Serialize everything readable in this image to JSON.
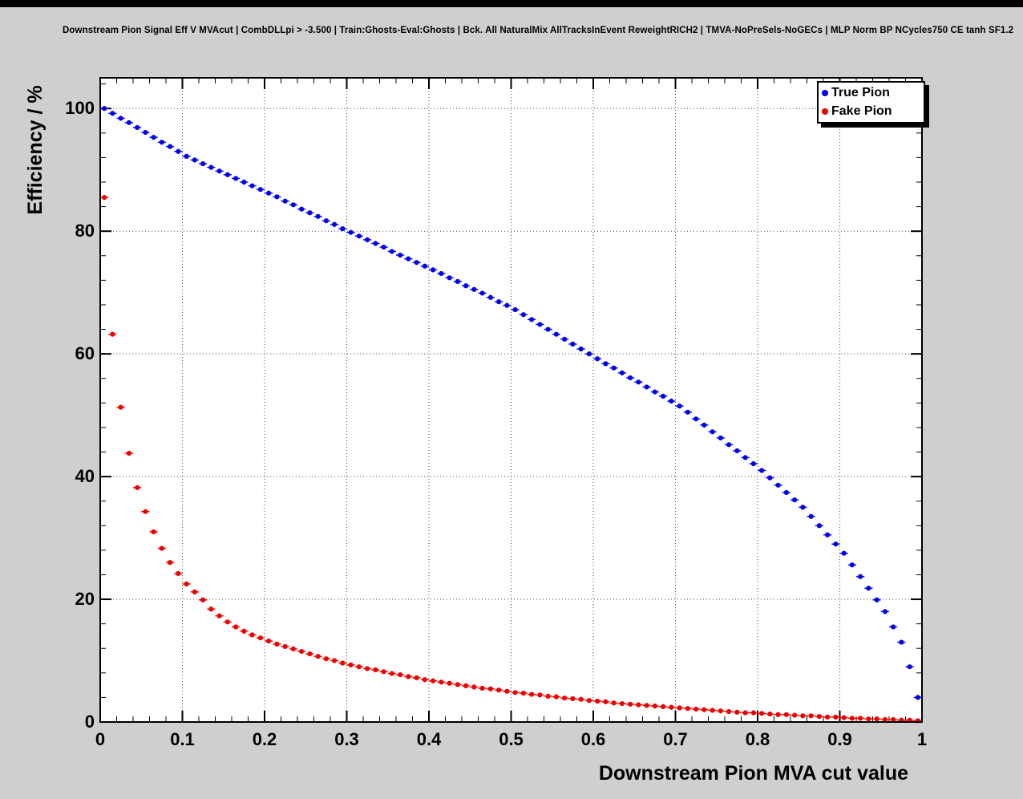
{
  "window": {
    "background_color": "#cfcfcf",
    "top_strip_color": "#000000"
  },
  "title": "Downstream Pion Signal Eff V MVAcut | CombDLLpi > -3.500 | Train:Ghosts-Eval:Ghosts | Bck. All NaturalMix AllTracksInEvent ReweightRICH2 | TMVA-NoPreSels-NoGECs | MLP Norm BP NCycles750 CE tanh SF1.2",
  "axes": {
    "x": {
      "label": "Downstream Pion MVA cut value",
      "min": 0,
      "max": 1,
      "major_ticks": [
        {
          "v": 0,
          "t": "0"
        },
        {
          "v": 0.1,
          "t": "0.1"
        },
        {
          "v": 0.2,
          "t": "0.2"
        },
        {
          "v": 0.3,
          "t": "0.3"
        },
        {
          "v": 0.4,
          "t": "0.4"
        },
        {
          "v": 0.5,
          "t": "0.5"
        },
        {
          "v": 0.6,
          "t": "0.6"
        },
        {
          "v": 0.7,
          "t": "0.7"
        },
        {
          "v": 0.8,
          "t": "0.8"
        },
        {
          "v": 0.9,
          "t": "0.9"
        },
        {
          "v": 1,
          "t": "1"
        }
      ],
      "minor_step": 0.02
    },
    "y": {
      "label": "Efficiency / %",
      "min": 0,
      "max": 105,
      "major_ticks": [
        {
          "v": 0,
          "t": "0"
        },
        {
          "v": 20,
          "t": "20"
        },
        {
          "v": 40,
          "t": "40"
        },
        {
          "v": 60,
          "t": "60"
        },
        {
          "v": 80,
          "t": "80"
        },
        {
          "v": 100,
          "t": "100"
        }
      ],
      "minor_step": 4
    }
  },
  "legend": {
    "items": [
      {
        "label": "True Pion",
        "color": "#0000ee"
      },
      {
        "label": "Fake Pion",
        "color": "#ee0000"
      }
    ]
  },
  "chart_data": {
    "type": "scatter",
    "title": "Downstream Pion Signal Eff V MVAcut | CombDLLpi > -3.500 | Train:Ghosts-Eval:Ghosts | Bck. All NaturalMix AllTracksInEvent ReweightRICH2 | TMVA-NoPreSels-NoGECs | MLP Norm BP NCycles750 CE tanh SF1.2",
    "xlabel": "Downstream Pion MVA cut value",
    "ylabel": "Efficiency / %",
    "xlim": [
      0,
      1
    ],
    "ylim": [
      0,
      105
    ],
    "grid": true,
    "grid_style": "dotted",
    "legend_position": "top-right",
    "marker": "filled-circle",
    "x_error": 0.005,
    "x": [
      0.005,
      0.015,
      0.025,
      0.035,
      0.045,
      0.055,
      0.065,
      0.075,
      0.085,
      0.095,
      0.105,
      0.115,
      0.125,
      0.135,
      0.145,
      0.155,
      0.165,
      0.175,
      0.185,
      0.195,
      0.205,
      0.215,
      0.225,
      0.235,
      0.245,
      0.255,
      0.265,
      0.275,
      0.285,
      0.295,
      0.305,
      0.315,
      0.325,
      0.335,
      0.345,
      0.355,
      0.365,
      0.375,
      0.385,
      0.395,
      0.405,
      0.415,
      0.425,
      0.435,
      0.445,
      0.455,
      0.465,
      0.475,
      0.485,
      0.495,
      0.505,
      0.515,
      0.525,
      0.535,
      0.545,
      0.555,
      0.565,
      0.575,
      0.585,
      0.595,
      0.605,
      0.615,
      0.625,
      0.635,
      0.645,
      0.655,
      0.665,
      0.675,
      0.685,
      0.695,
      0.705,
      0.715,
      0.725,
      0.735,
      0.745,
      0.755,
      0.765,
      0.775,
      0.785,
      0.795,
      0.805,
      0.815,
      0.825,
      0.835,
      0.845,
      0.855,
      0.865,
      0.875,
      0.885,
      0.895,
      0.905,
      0.915,
      0.925,
      0.935,
      0.945,
      0.955,
      0.965,
      0.975,
      0.985,
      0.995
    ],
    "series": [
      {
        "name": "True Pion",
        "color": "#0000ee",
        "values": [
          100.0,
          99.2,
          98.4,
          97.7,
          96.9,
          96.1,
          95.3,
          94.5,
          93.8,
          93.0,
          92.2,
          91.6,
          91.0,
          90.4,
          89.8,
          89.2,
          88.6,
          88.0,
          87.4,
          86.8,
          86.2,
          85.6,
          84.9,
          84.3,
          83.6,
          83.0,
          82.4,
          81.7,
          81.1,
          80.4,
          79.8,
          79.2,
          78.6,
          78.0,
          77.4,
          76.7,
          76.1,
          75.5,
          74.9,
          74.3,
          73.7,
          73.1,
          72.4,
          71.8,
          71.1,
          70.5,
          69.9,
          69.2,
          68.5,
          67.9,
          67.2,
          66.4,
          65.6,
          64.8,
          64.0,
          63.2,
          62.4,
          61.6,
          60.8,
          60.0,
          59.2,
          58.4,
          57.7,
          56.9,
          56.1,
          55.4,
          54.6,
          53.8,
          53.1,
          52.3,
          51.5,
          50.5,
          49.4,
          48.4,
          47.3,
          46.3,
          45.2,
          44.2,
          43.1,
          42.1,
          41.0,
          39.8,
          38.6,
          37.4,
          36.2,
          35.0,
          33.5,
          32.0,
          30.5,
          29.0,
          27.5,
          25.6,
          23.7,
          21.8,
          19.9,
          18.0,
          15.5,
          13.0,
          9.0,
          4.0
        ]
      },
      {
        "name": "Fake Pion",
        "color": "#ee0000",
        "values": [
          85.5,
          63.2,
          51.3,
          43.8,
          38.2,
          34.3,
          31.0,
          28.3,
          26.0,
          24.2,
          22.5,
          21.2,
          19.9,
          18.4,
          17.3,
          16.3,
          15.5,
          14.8,
          14.2,
          13.7,
          13.2,
          12.7,
          12.3,
          11.9,
          11.5,
          11.1,
          10.7,
          10.3,
          10.0,
          9.6,
          9.3,
          9.0,
          8.7,
          8.5,
          8.2,
          7.9,
          7.7,
          7.4,
          7.2,
          6.9,
          6.7,
          6.5,
          6.3,
          6.1,
          5.9,
          5.7,
          5.5,
          5.4,
          5.2,
          5.0,
          4.8,
          4.7,
          4.5,
          4.4,
          4.2,
          4.1,
          3.9,
          3.8,
          3.7,
          3.5,
          3.4,
          3.3,
          3.1,
          3.0,
          2.9,
          2.8,
          2.7,
          2.6,
          2.5,
          2.4,
          2.3,
          2.2,
          2.1,
          2.0,
          1.9,
          1.8,
          1.7,
          1.6,
          1.5,
          1.5,
          1.4,
          1.3,
          1.2,
          1.2,
          1.1,
          1.0,
          1.0,
          0.9,
          0.8,
          0.8,
          0.7,
          0.6,
          0.6,
          0.5,
          0.5,
          0.4,
          0.4,
          0.3,
          0.3,
          0.2
        ]
      }
    ]
  }
}
